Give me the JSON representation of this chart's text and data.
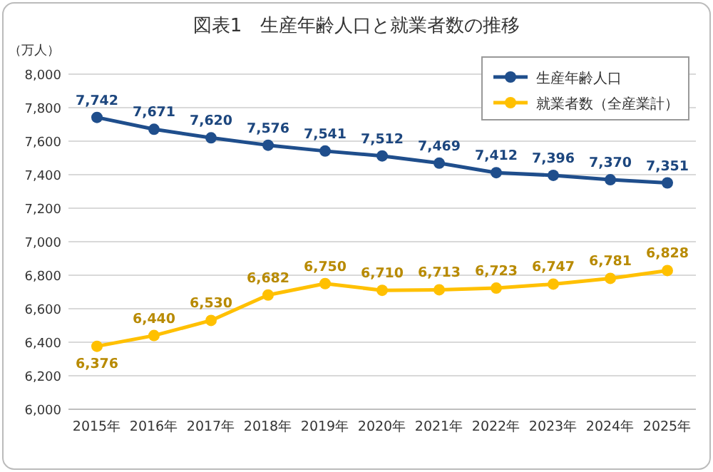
{
  "chart_data": {
    "type": "line",
    "title": "図表1　生産年齢人口と就業者数の推移",
    "ylabel": "（万人）",
    "categories": [
      "2015年",
      "2016年",
      "2017年",
      "2018年",
      "2019年",
      "2020年",
      "2021年",
      "2022年",
      "2023年",
      "2024年",
      "2025年"
    ],
    "series": [
      {
        "name": "生産年齢人口",
        "color": "#1f4e8c",
        "values": [
          7742,
          7671,
          7620,
          7576,
          7541,
          7512,
          7469,
          7412,
          7396,
          7370,
          7351
        ],
        "value_labels": [
          "7,742",
          "7,671",
          "7,620",
          "7,576",
          "7,541",
          "7,512",
          "7,469",
          "7,412",
          "7,396",
          "7,370",
          "7,351"
        ]
      },
      {
        "name": "就業者数（全産業計）",
        "color": "#ffc000",
        "values": [
          6376,
          6440,
          6530,
          6682,
          6750,
          6710,
          6713,
          6723,
          6747,
          6781,
          6828
        ],
        "value_labels": [
          "6,376",
          "6,440",
          "6,530",
          "6,682",
          "6,750",
          "6,710",
          "6,713",
          "6,723",
          "6,747",
          "6,781",
          "6,828"
        ]
      }
    ],
    "ylim": [
      6000,
      8000
    ],
    "yticks": [
      {
        "value": 6000,
        "label": "6,000"
      },
      {
        "value": 6200,
        "label": "6,200"
      },
      {
        "value": 6400,
        "label": "6,400"
      },
      {
        "value": 6600,
        "label": "6,600"
      },
      {
        "value": 6800,
        "label": "6,800"
      },
      {
        "value": 7000,
        "label": "7,000"
      },
      {
        "value": 7200,
        "label": "7,200"
      },
      {
        "value": 7400,
        "label": "7,400"
      },
      {
        "value": 7600,
        "label": "7,600"
      },
      {
        "value": 7800,
        "label": "7,800"
      },
      {
        "value": 8000,
        "label": "8,000"
      }
    ],
    "grid": "y",
    "legend": "top right",
    "marker": "circle",
    "line_style": "solid"
  }
}
